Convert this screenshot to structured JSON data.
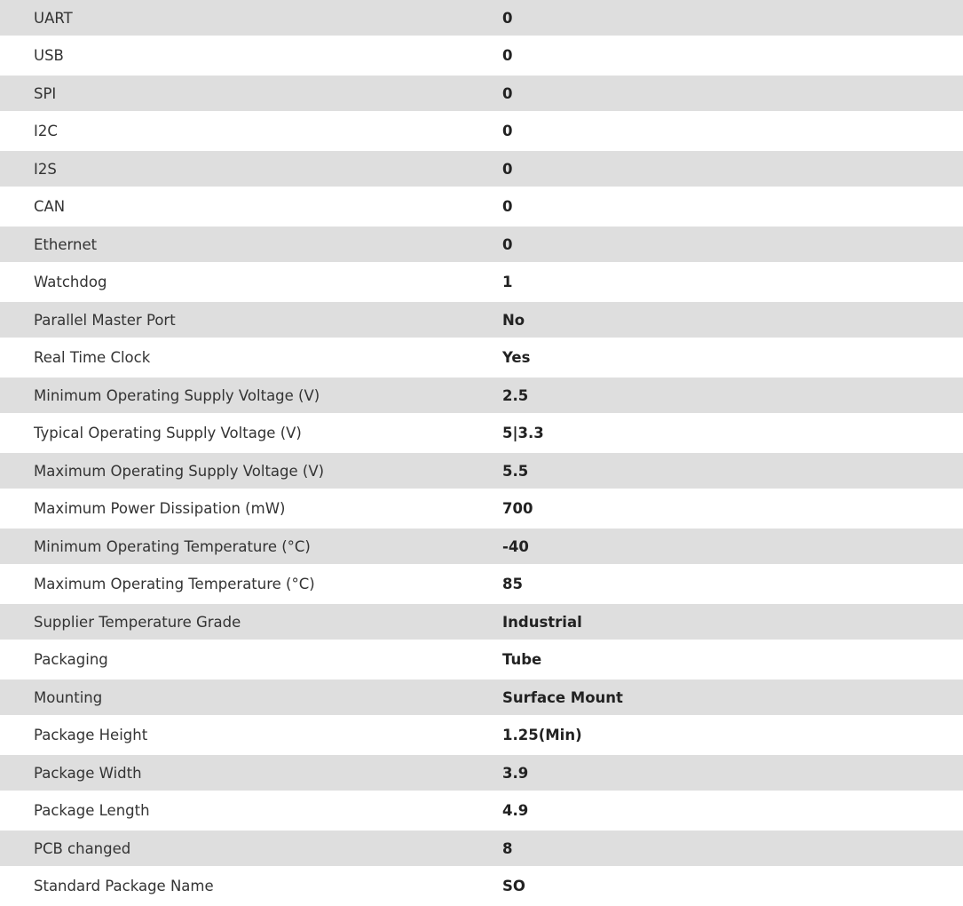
{
  "specs": [
    {
      "label": "UART",
      "value": "0"
    },
    {
      "label": "USB",
      "value": "0"
    },
    {
      "label": "SPI",
      "value": "0"
    },
    {
      "label": "I2C",
      "value": "0"
    },
    {
      "label": "I2S",
      "value": "0"
    },
    {
      "label": "CAN",
      "value": "0"
    },
    {
      "label": "Ethernet",
      "value": "0"
    },
    {
      "label": "Watchdog",
      "value": "1"
    },
    {
      "label": "Parallel Master Port",
      "value": "No"
    },
    {
      "label": "Real Time Clock",
      "value": "Yes"
    },
    {
      "label": "Minimum Operating Supply Voltage (V)",
      "value": "2.5"
    },
    {
      "label": "Typical Operating Supply Voltage (V)",
      "value": "5|3.3"
    },
    {
      "label": "Maximum Operating Supply Voltage (V)",
      "value": "5.5"
    },
    {
      "label": "Maximum Power Dissipation (mW)",
      "value": "700"
    },
    {
      "label": "Minimum Operating Temperature (°C)",
      "value": "-40"
    },
    {
      "label": "Maximum Operating Temperature (°C)",
      "value": "85"
    },
    {
      "label": "Supplier Temperature Grade",
      "value": "Industrial"
    },
    {
      "label": "Packaging",
      "value": "Tube"
    },
    {
      "label": "Mounting",
      "value": "Surface Mount"
    },
    {
      "label": "Package Height",
      "value": "1.25(Min)"
    },
    {
      "label": "Package Width",
      "value": "3.9"
    },
    {
      "label": "Package Length",
      "value": "4.9"
    },
    {
      "label": "PCB changed",
      "value": "8"
    },
    {
      "label": "Standard Package Name",
      "value": "SO"
    }
  ]
}
